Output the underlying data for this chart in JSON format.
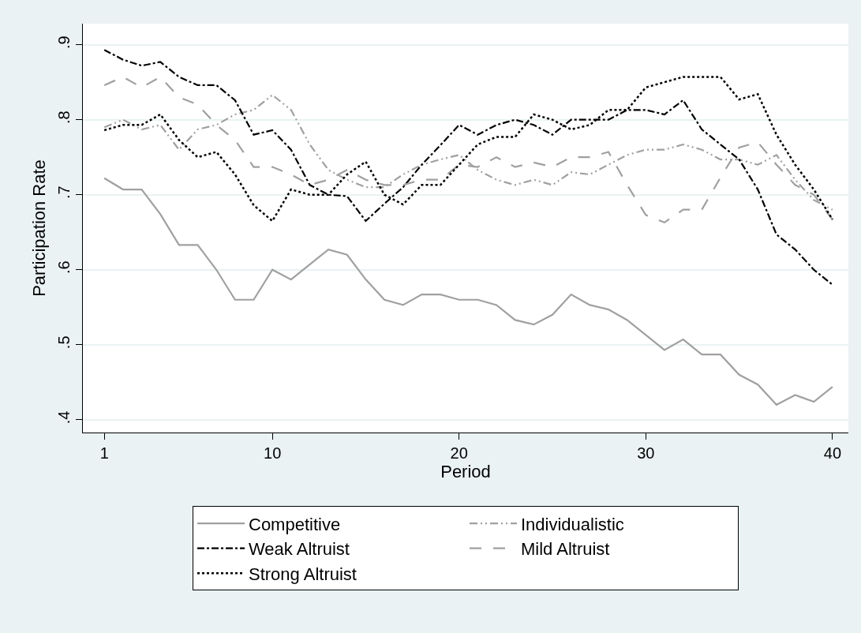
{
  "chart_data": {
    "type": "line",
    "xlabel": "Period",
    "ylabel": "Participation Rate",
    "x": [
      1,
      2,
      3,
      4,
      5,
      6,
      7,
      8,
      9,
      10,
      11,
      12,
      13,
      14,
      15,
      16,
      17,
      18,
      19,
      20,
      21,
      22,
      23,
      24,
      25,
      26,
      27,
      28,
      29,
      30,
      31,
      32,
      33,
      34,
      35,
      36,
      37,
      38,
      39,
      40
    ],
    "xlim": [
      -0.15,
      40.85
    ],
    "xticks": [
      1,
      10,
      20,
      30,
      40
    ],
    "ylim": [
      0.383,
      0.928
    ],
    "yticks": [
      {
        "value": 0.4,
        "label": ".4"
      },
      {
        "value": 0.5,
        "label": ".5"
      },
      {
        "value": 0.6,
        "label": ".6"
      },
      {
        "value": 0.7,
        "label": ".7"
      },
      {
        "value": 0.8,
        "label": ".8"
      },
      {
        "value": 0.9,
        "label": ".9"
      }
    ],
    "grid": "y",
    "legend": "bottom",
    "marker": "none",
    "series": [
      {
        "name": "Competitive",
        "color": "#a0a0a0",
        "line_style": "solid",
        "values": [
          0.722,
          0.707,
          0.707,
          0.674,
          0.633,
          0.633,
          0.6,
          0.56,
          0.56,
          0.6,
          0.587,
          0.607,
          0.627,
          0.62,
          0.587,
          0.56,
          0.553,
          0.567,
          0.567,
          0.56,
          0.56,
          0.553,
          0.533,
          0.527,
          0.54,
          0.567,
          0.553,
          0.547,
          0.533,
          0.513,
          0.493,
          0.507,
          0.487,
          0.487,
          0.46,
          0.447,
          0.42,
          0.433,
          0.424,
          0.444
        ]
      },
      {
        "name": "Individualistic",
        "color": "#a0a0a0",
        "line_style": "dashdotdot",
        "values": [
          0.79,
          0.8,
          0.787,
          0.793,
          0.76,
          0.787,
          0.793,
          0.807,
          0.813,
          0.833,
          0.813,
          0.767,
          0.733,
          0.72,
          0.71,
          0.71,
          0.727,
          0.74,
          0.747,
          0.753,
          0.733,
          0.72,
          0.713,
          0.72,
          0.713,
          0.73,
          0.727,
          0.74,
          0.753,
          0.76,
          0.76,
          0.767,
          0.76,
          0.747,
          0.747,
          0.74,
          0.753,
          0.72,
          0.693,
          0.68
        ]
      },
      {
        "name": "Weak Altruist",
        "color": "#000000",
        "line_style": "dashdot",
        "values": [
          0.893,
          0.88,
          0.872,
          0.877,
          0.857,
          0.846,
          0.846,
          0.826,
          0.78,
          0.786,
          0.76,
          0.713,
          0.7,
          0.698,
          0.665,
          0.688,
          0.71,
          0.74,
          0.766,
          0.793,
          0.78,
          0.793,
          0.8,
          0.793,
          0.78,
          0.8,
          0.8,
          0.8,
          0.813,
          0.813,
          0.807,
          0.826,
          0.787,
          0.767,
          0.747,
          0.707,
          0.647,
          0.627,
          0.6,
          0.58
        ]
      },
      {
        "name": "Mild Altruist",
        "color": "#a0a0a0",
        "line_style": "longdash",
        "values": [
          0.846,
          0.857,
          0.843,
          0.857,
          0.83,
          0.82,
          0.793,
          0.773,
          0.737,
          0.737,
          0.727,
          0.713,
          0.72,
          0.733,
          0.72,
          0.713,
          0.713,
          0.72,
          0.72,
          0.74,
          0.737,
          0.75,
          0.737,
          0.743,
          0.737,
          0.75,
          0.75,
          0.757,
          0.713,
          0.673,
          0.663,
          0.68,
          0.68,
          0.723,
          0.763,
          0.77,
          0.74,
          0.713,
          0.7,
          0.667
        ]
      },
      {
        "name": "Strong Altruist",
        "color": "#000000",
        "line_style": "dotted",
        "values": [
          0.786,
          0.793,
          0.793,
          0.807,
          0.773,
          0.75,
          0.757,
          0.727,
          0.686,
          0.665,
          0.707,
          0.7,
          0.7,
          0.727,
          0.744,
          0.7,
          0.687,
          0.713,
          0.713,
          0.74,
          0.767,
          0.777,
          0.777,
          0.807,
          0.8,
          0.787,
          0.793,
          0.813,
          0.813,
          0.843,
          0.85,
          0.857,
          0.857,
          0.857,
          0.827,
          0.834,
          0.78,
          0.74,
          0.707,
          0.667
        ]
      }
    ]
  }
}
